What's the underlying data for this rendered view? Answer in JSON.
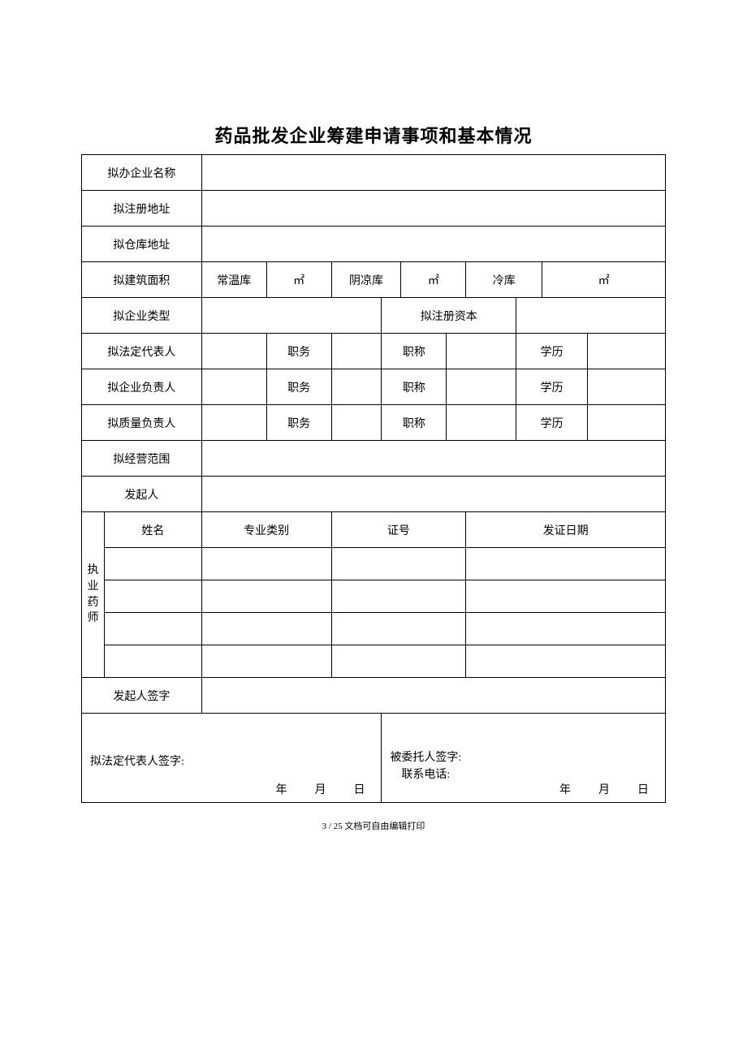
{
  "title": "药品批发企业筹建申请事项和基本情况",
  "rows": {
    "r1": "拟办企业名称",
    "r2": "拟注册地址",
    "r3": "拟仓库地址",
    "r4": {
      "label": "拟建筑面积",
      "c1": "常温库",
      "c2": "㎡",
      "c3": "阴凉库",
      "c4": "㎡",
      "c5": "冷库",
      "c6": "㎡"
    },
    "r5": {
      "c1": "拟企业类型",
      "c2": "拟注册资本"
    },
    "r6": {
      "label": "拟法定代表人",
      "c1": "职务",
      "c2": "职称",
      "c3": "学历"
    },
    "r7": {
      "label": "拟企业负责人",
      "c1": "职务",
      "c2": "职称",
      "c3": "学历"
    },
    "r8": {
      "label": "拟质量负责人",
      "c1": "职务",
      "c2": "职称",
      "c3": "学历"
    },
    "r9": "拟经营范围",
    "r10": "发起人",
    "pharmacist": {
      "vlabel": "执业药师",
      "h1": "姓名",
      "h2": "专业类别",
      "h3": "证号",
      "h4": "发证日期"
    },
    "r_sign_sponsor": "发起人签字",
    "sign_left": {
      "label": "拟法定代表人签字:",
      "y": "年",
      "m": "月",
      "d": "日"
    },
    "sign_right": {
      "label1": "被委托人签字:",
      "label2": "联系电话:",
      "y": "年",
      "m": "月",
      "d": "日"
    }
  },
  "footer": "3 / 25 文档可自由编辑打印"
}
